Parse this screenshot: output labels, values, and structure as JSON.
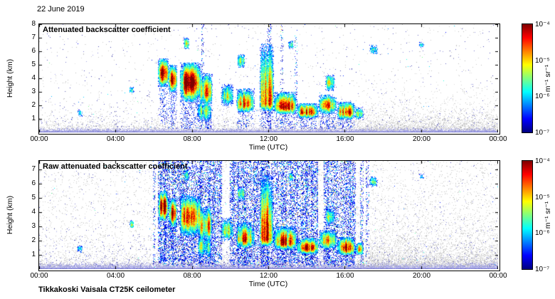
{
  "figure": {
    "date": "22 June 2019",
    "instrument": "Tikkakoski Vaisala CT25K ceilometer",
    "background": "#ffffff"
  },
  "chart_data": [
    {
      "type": "heatmap",
      "panel": "top",
      "title": "Attenuated backscatter coefficient",
      "xlabel": "Time (UTC)",
      "ylabel": "Height (km)",
      "x_ticks": [
        "00:00",
        "04:00",
        "08:00",
        "12:00",
        "16:00",
        "20:00",
        "00:00"
      ],
      "xlim_hours": [
        0,
        24
      ],
      "y_ticks": [
        1,
        2,
        3,
        4,
        5,
        6,
        7,
        8
      ],
      "ylim": [
        0,
        8
      ],
      "grid": false,
      "colorbar": {
        "label": "m⁻¹ sr⁻¹",
        "tick_labels": [
          "10⁻⁴",
          "10⁻⁵",
          "10⁻⁶",
          "10⁻⁷"
        ],
        "scale": "log",
        "range_min": 1e-07,
        "range_max": 0.0001,
        "colormap": "jet",
        "stops": [
          "#00007f",
          "#0000ff",
          "#00ffff",
          "#ffff00",
          "#ff0000",
          "#7f0000"
        ],
        "stop_pos": [
          0,
          12.5,
          37.5,
          62.5,
          87.5,
          100
        ]
      },
      "clouds_legend": [
        "t_start_h",
        "t_end_h",
        "base_km",
        "top_km",
        "core_km",
        "intensity_0to1",
        "virga_below"
      ],
      "clouds": [
        [
          6.2,
          6.75,
          3.4,
          5.5,
          4.4,
          0.95,
          1
        ],
        [
          6.75,
          7.2,
          3.0,
          5.0,
          3.9,
          0.9,
          1
        ],
        [
          7.35,
          8.45,
          2.3,
          5.2,
          3.7,
          1.0,
          1
        ],
        [
          8.35,
          9.05,
          2.0,
          4.4,
          3.0,
          0.75,
          1
        ],
        [
          8.25,
          9.0,
          0.8,
          2.4,
          1.6,
          0.5,
          0
        ],
        [
          9.5,
          10.15,
          2.0,
          3.6,
          2.7,
          0.6,
          0
        ],
        [
          10.3,
          11.25,
          1.5,
          3.3,
          2.1,
          0.85,
          1
        ],
        [
          10.35,
          10.75,
          4.8,
          5.8,
          5.3,
          0.55,
          0
        ],
        [
          11.5,
          12.25,
          1.6,
          6.6,
          2.2,
          0.85,
          1
        ],
        [
          12.25,
          13.45,
          1.4,
          3.0,
          1.9,
          0.95,
          1
        ],
        [
          13.45,
          14.6,
          1.1,
          2.2,
          1.5,
          0.9,
          1
        ],
        [
          14.6,
          15.55,
          1.4,
          2.8,
          2.0,
          0.7,
          1
        ],
        [
          14.95,
          15.45,
          3.1,
          4.3,
          3.7,
          0.55,
          0
        ],
        [
          15.55,
          16.5,
          1.0,
          2.3,
          1.5,
          0.9,
          1
        ],
        [
          16.5,
          16.95,
          1.0,
          1.9,
          1.4,
          0.6,
          0
        ],
        [
          7.55,
          7.85,
          6.2,
          7.0,
          6.6,
          0.5,
          0
        ],
        [
          13.0,
          13.3,
          6.2,
          6.8,
          6.5,
          0.45,
          0
        ],
        [
          17.25,
          17.7,
          5.8,
          6.5,
          6.15,
          0.5,
          0
        ],
        [
          4.7,
          4.95,
          2.9,
          3.45,
          3.15,
          0.45,
          0
        ],
        [
          2.0,
          2.25,
          1.2,
          1.7,
          1.45,
          0.4,
          0
        ],
        [
          19.85,
          20.1,
          6.3,
          6.7,
          6.5,
          0.35,
          0
        ]
      ],
      "precip_columns": [
        [
          8.45,
          8.6,
          0.3
        ],
        [
          11.9,
          12.1,
          0.45
        ],
        [
          12.6,
          12.75,
          0.3
        ],
        [
          13.35,
          13.5,
          0.25
        ]
      ],
      "surface_layer_km": [
        0.12,
        0.38
      ],
      "gray_noise": [
        0.5,
        0.5,
        0.008,
        16.2,
        0.4,
        0.85
      ],
      "blue_noise": [
        0.05,
        0.8,
        0.004
      ],
      "color_speck_p": 0.0005,
      "seed": 7
    },
    {
      "type": "heatmap",
      "panel": "bottom",
      "title": "Raw attenuated backscatter coefficient",
      "xlabel": "Time (UTC)",
      "ylabel": "Height (km)",
      "x_ticks": [
        "00:00",
        "04:00",
        "08:00",
        "12:00",
        "16:00",
        "20:00",
        "00:00"
      ],
      "xlim_hours": [
        0,
        24
      ],
      "y_ticks": [
        1,
        2,
        3,
        4,
        5,
        6,
        7
      ],
      "ylim": [
        0,
        7.6
      ],
      "grid": false,
      "colorbar": {
        "label": "m⁻¹ sr⁻¹",
        "tick_labels": [
          "10⁻⁴",
          "10⁻⁵",
          "10⁻⁶",
          "10⁻⁷"
        ],
        "scale": "log",
        "range_min": 1e-07,
        "range_max": 0.0001,
        "colormap": "jet",
        "stops": [
          "#00007f",
          "#0000ff",
          "#00ffff",
          "#ffff00",
          "#ff0000",
          "#7f0000"
        ],
        "stop_pos": [
          0,
          12.5,
          37.5,
          62.5,
          87.5,
          100
        ]
      },
      "clouds_legend": [
        "t_start_h",
        "t_end_h",
        "base_km",
        "top_km",
        "core_km",
        "intensity_0to1",
        "virga_below"
      ],
      "clouds": [
        [
          6.2,
          6.75,
          3.4,
          5.5,
          4.4,
          0.95,
          1
        ],
        [
          6.75,
          7.2,
          3.0,
          5.0,
          3.9,
          0.9,
          1
        ],
        [
          7.35,
          8.45,
          2.3,
          5.2,
          3.7,
          1.0,
          1
        ],
        [
          8.35,
          9.05,
          2.0,
          4.4,
          3.0,
          0.75,
          1
        ],
        [
          8.25,
          9.0,
          0.8,
          2.4,
          1.6,
          0.5,
          0
        ],
        [
          9.5,
          10.15,
          2.0,
          3.6,
          2.7,
          0.6,
          0
        ],
        [
          10.3,
          11.25,
          1.5,
          3.3,
          2.1,
          0.85,
          1
        ],
        [
          10.35,
          10.75,
          4.8,
          5.8,
          5.3,
          0.55,
          0
        ],
        [
          11.5,
          12.25,
          1.6,
          6.6,
          2.2,
          0.85,
          1
        ],
        [
          12.25,
          13.45,
          1.4,
          3.0,
          1.9,
          0.95,
          1
        ],
        [
          13.45,
          14.6,
          1.1,
          2.2,
          1.5,
          0.9,
          1
        ],
        [
          14.6,
          15.55,
          1.4,
          2.8,
          2.0,
          0.7,
          1
        ],
        [
          14.95,
          15.45,
          3.1,
          4.3,
          3.7,
          0.55,
          0
        ],
        [
          15.55,
          16.5,
          1.0,
          2.3,
          1.5,
          0.9,
          1
        ],
        [
          16.5,
          16.95,
          1.0,
          1.9,
          1.4,
          0.6,
          0
        ],
        [
          7.55,
          7.85,
          6.2,
          7.0,
          6.6,
          0.5,
          0
        ],
        [
          13.0,
          13.3,
          6.2,
          6.8,
          6.5,
          0.45,
          0
        ],
        [
          17.25,
          17.7,
          5.8,
          6.5,
          6.15,
          0.5,
          0
        ],
        [
          4.7,
          4.95,
          2.9,
          3.45,
          3.15,
          0.45,
          0
        ],
        [
          2.0,
          2.25,
          1.2,
          1.7,
          1.45,
          0.4,
          0
        ],
        [
          19.85,
          20.1,
          6.3,
          6.7,
          6.5,
          0.35,
          0
        ]
      ],
      "precip_columns": [
        [
          5.95,
          6.1,
          0.45
        ],
        [
          6.2,
          9.55,
          0.8
        ],
        [
          9.95,
          12.05,
          0.85
        ],
        [
          12.1,
          14.55,
          0.8
        ],
        [
          14.85,
          16.55,
          0.75
        ],
        [
          16.75,
          16.95,
          0.5
        ],
        [
          17.05,
          17.25,
          0.4
        ]
      ],
      "surface_layer_km": [
        0.15,
        0.5
      ],
      "gray_noise": [
        0.5,
        0.5,
        0.045,
        16.5,
        0.5,
        1.2
      ],
      "blue_noise": [
        0.07,
        1.0,
        0.006
      ],
      "color_speck_p": 0.0008,
      "seed": 13
    }
  ]
}
